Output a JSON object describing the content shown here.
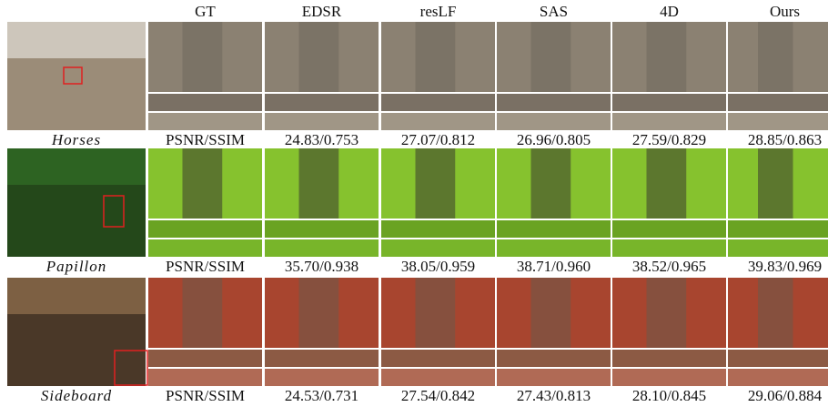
{
  "columns": [
    "GT",
    "EDSR",
    "resLF",
    "SAS",
    "4D",
    "Ours"
  ],
  "rows": [
    {
      "name": "Horses",
      "metrics": [
        "PSNR/SSIM",
        "24.83/0.753",
        "27.07/0.812",
        "26.96/0.805",
        "27.59/0.829",
        "28.85/0.863"
      ]
    },
    {
      "name": "Papillon",
      "metrics": [
        "PSNR/SSIM",
        "35.70/0.938",
        "38.05/0.959",
        "38.71/0.960",
        "38.52/0.965",
        "39.83/0.969"
      ]
    },
    {
      "name": "Sideboard",
      "metrics": [
        "PSNR/SSIM",
        "24.53/0.731",
        "27.54/0.842",
        "27.43/0.813",
        "28.10/0.845",
        "29.06/0.884"
      ]
    }
  ]
}
